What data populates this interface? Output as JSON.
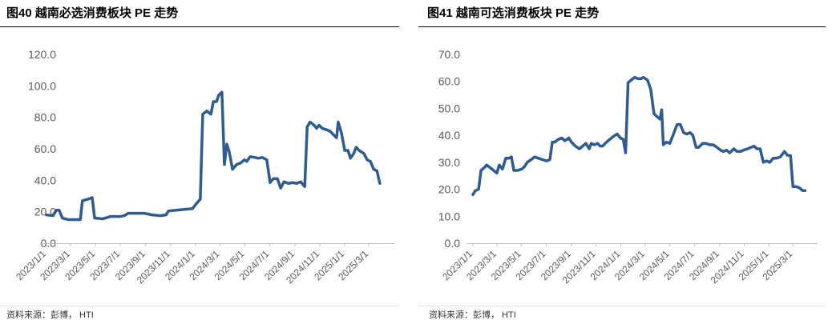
{
  "chart_data": [
    {
      "type": "line",
      "title": "图40 越南必选消费板块 PE 走势",
      "source": "资料来源：彭博， HTI",
      "color": "#2f5b8f",
      "xlim": [
        "2023/1/1",
        "2025/4/15"
      ],
      "xticks": [
        "2023/1/1",
        "2023/3/1",
        "2023/5/1",
        "2023/7/1",
        "2023/9/1",
        "2023/11/1",
        "2024/1/1",
        "2024/3/1",
        "2024/5/1",
        "2024/7/1",
        "2024/9/1",
        "2024/11/1",
        "2025/1/1",
        "2025/3/1"
      ],
      "ylim": [
        0,
        120
      ],
      "yticks": [
        {
          "value": 0,
          "label": "0.0"
        },
        {
          "value": 20,
          "label": "20.0"
        },
        {
          "value": 40,
          "label": "40.0"
        },
        {
          "value": 60,
          "label": "60.0"
        },
        {
          "value": 80,
          "label": "80.0"
        },
        {
          "value": 100,
          "label": "100.0"
        },
        {
          "value": 120,
          "label": "120.0"
        }
      ],
      "x": [
        "2023/1/1",
        "2023/1/17",
        "2023/1/25",
        "2023/2/1",
        "2023/2/9",
        "2023/2/23",
        "2023/3/15",
        "2023/3/25",
        "2023/3/30",
        "2023/4/13",
        "2023/4/23",
        "2023/4/29",
        "2023/5/19",
        "2023/6/7",
        "2023/6/21",
        "2023/7/1",
        "2023/7/11",
        "2023/7/20",
        "2023/8/9",
        "2023/8/29",
        "2023/9/17",
        "2023/10/7",
        "2023/10/21",
        "2023/10/27",
        "2023/11/15",
        "2023/12/5",
        "2023/12/25",
        "2024/1/3",
        "2024/1/13",
        "2024/1/19",
        "2024/1/29",
        "2024/2/8",
        "2024/2/14",
        "2024/2/22",
        "2024/2/27",
        "2024/3/6",
        "2024/3/12",
        "2024/3/18",
        "2024/3/24",
        "2024/4/1",
        "2024/4/11",
        "2024/4/21",
        "2024/4/30",
        "2024/5/6",
        "2024/5/14",
        "2024/5/26",
        "2024/6/3",
        "2024/6/13",
        "2024/6/24",
        "2024/7/2",
        "2024/7/10",
        "2024/7/20",
        "2024/7/28",
        "2024/8/5",
        "2024/8/16",
        "2024/8/26",
        "2024/9/5",
        "2024/9/15",
        "2024/9/25",
        "2024/10/1",
        "2024/10/8",
        "2024/10/18",
        "2024/10/24",
        "2024/10/30",
        "2024/11/7",
        "2024/11/19",
        "2024/11/27",
        "2024/12/4",
        "2024/12/12",
        "2024/12/16",
        "2024/12/24",
        "2025/1/1",
        "2025/1/9",
        "2025/1/15",
        "2025/1/23",
        "2025/1/29",
        "2025/2/5",
        "2025/2/17",
        "2025/2/25",
        "2025/3/5",
        "2025/3/13",
        "2025/3/21",
        "2025/3/28"
      ],
      "values": [
        18,
        17.5,
        21,
        21,
        16,
        15,
        15,
        15,
        27,
        28,
        29,
        16,
        15.5,
        17,
        17,
        17,
        17.5,
        19,
        19,
        19,
        18,
        17.5,
        18,
        20.5,
        21,
        21.5,
        22,
        25,
        28,
        82,
        84,
        82,
        90,
        90,
        94,
        96,
        50,
        63,
        58,
        47,
        50,
        51,
        53,
        52,
        55,
        54.5,
        54,
        54.5,
        53,
        38.5,
        41,
        41,
        35,
        39,
        38,
        38.5,
        38,
        39,
        36,
        74,
        77,
        75,
        73,
        75,
        73,
        72,
        71,
        69,
        67,
        77,
        70,
        59,
        59,
        54,
        57,
        61,
        59,
        57,
        53,
        52,
        47,
        46,
        38
      ]
    },
    {
      "type": "line",
      "title": "图41 越南可选消费板块 PE 走势",
      "source": "资料来源：彭博， HTI",
      "color": "#2f5b8f",
      "xlim": [
        "2023/1/1",
        "2025/4/15"
      ],
      "xticks": [
        "2023/1/1",
        "2023/3/1",
        "2023/5/1",
        "2023/7/1",
        "2023/9/1",
        "2023/11/1",
        "2024/1/1",
        "2024/3/1",
        "2024/5/1",
        "2024/7/1",
        "2024/9/1",
        "2024/11/1",
        "2025/1/1",
        "2025/3/1"
      ],
      "ylim": [
        0,
        70
      ],
      "yticks": [
        {
          "value": 0,
          "label": "0.0"
        },
        {
          "value": 10,
          "label": "10.0"
        },
        {
          "value": 20,
          "label": "20.0"
        },
        {
          "value": 30,
          "label": "30.0"
        },
        {
          "value": 40,
          "label": "40.0"
        },
        {
          "value": 50,
          "label": "50.0"
        },
        {
          "value": 60,
          "label": "60.0"
        },
        {
          "value": 70,
          "label": "70.0"
        }
      ],
      "x": [
        "2023/1/1",
        "2023/1/7",
        "2023/1/15",
        "2023/1/21",
        "2023/1/29",
        "2023/2/4",
        "2023/2/13",
        "2023/2/21",
        "2023/3/1",
        "2023/3/7",
        "2023/3/15",
        "2023/3/23",
        "2023/3/31",
        "2023/4/6",
        "2023/4/12",
        "2023/4/22",
        "2023/5/2",
        "2023/5/9",
        "2023/5/15",
        "2023/5/25",
        "2023/6/2",
        "2023/6/12",
        "2023/6/21",
        "2023/7/2",
        "2023/7/10",
        "2023/7/16",
        "2023/7/22",
        "2023/7/31",
        "2023/8/8",
        "2023/8/16",
        "2023/8/26",
        "2023/9/1",
        "2023/9/11",
        "2023/9/21",
        "2023/9/29",
        "2023/10/7",
        "2023/10/15",
        "2023/10/20",
        "2023/10/28",
        "2023/11/5",
        "2023/11/11",
        "2023/11/17",
        "2023/11/27",
        "2023/12/5",
        "2023/12/13",
        "2023/12/23",
        "2023/12/31",
        "2024/1/7",
        "2024/1/13",
        "2024/1/19",
        "2024/1/27",
        "2024/2/4",
        "2024/2/12",
        "2024/2/20",
        "2024/2/26",
        "2024/3/7",
        "2024/3/15",
        "2024/3/23",
        "2024/3/30",
        "2024/4/7",
        "2024/4/11",
        "2024/4/15",
        "2024/4/23",
        "2024/5/1",
        "2024/5/9",
        "2024/5/19",
        "2024/5/27",
        "2024/6/4",
        "2024/6/12",
        "2024/6/20",
        "2024/6/27",
        "2024/7/5",
        "2024/7/11",
        "2024/7/21",
        "2024/7/29",
        "2024/8/8",
        "2024/8/16",
        "2024/8/26",
        "2024/9/3",
        "2024/9/10",
        "2024/9/18",
        "2024/9/26",
        "2024/10/6",
        "2024/10/14",
        "2024/10/22",
        "2024/10/30",
        "2024/11/9",
        "2024/11/17",
        "2024/11/25",
        "2024/12/2",
        "2024/12/10",
        "2024/12/18",
        "2024/12/26",
        "2025/1/3",
        "2025/1/11",
        "2025/1/19",
        "2025/1/29",
        "2025/2/8",
        "2025/2/16",
        "2025/2/23",
        "2025/3/1",
        "2025/3/9",
        "2025/3/17",
        "2025/3/25",
        "2025/3/31"
      ],
      "values": [
        18,
        19.5,
        20,
        27,
        28,
        29,
        28,
        27,
        26,
        29,
        27.5,
        31.5,
        31.5,
        32,
        27,
        27,
        27.5,
        28.5,
        30,
        31,
        32,
        31.5,
        31,
        30.5,
        31,
        37.5,
        37.5,
        38.5,
        39,
        38,
        39,
        37.5,
        36,
        35,
        36,
        37,
        35,
        37,
        36.5,
        37,
        36,
        36,
        37.5,
        38.5,
        39.5,
        40.5,
        39,
        38.5,
        33.5,
        59.5,
        60.5,
        61.5,
        61,
        61,
        61.5,
        60.5,
        57,
        48,
        47,
        46,
        49.5,
        36.5,
        37.5,
        37,
        40,
        44,
        44,
        41,
        40.5,
        41,
        40,
        35.5,
        35.5,
        37,
        37,
        36.5,
        36.5,
        35.5,
        34.5,
        34,
        34.5,
        33.5,
        35,
        34,
        34,
        34.5,
        35,
        35.5,
        36,
        35,
        35,
        30,
        30.5,
        30,
        31.5,
        31.5,
        32,
        34,
        32.5,
        32.5,
        21,
        21,
        20.5,
        19.5,
        19.5
      ]
    }
  ]
}
